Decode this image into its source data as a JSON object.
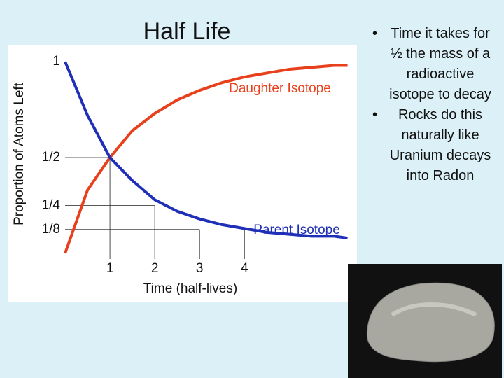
{
  "chart_data": {
    "type": "line",
    "title": "Half Life",
    "x_label": "Time (half-lives)",
    "y_label": "Proportion of Atoms Left",
    "x": [
      0,
      0.5,
      1,
      1.5,
      2,
      2.5,
      3,
      3.5,
      4,
      4.5,
      5,
      5.5,
      6,
      6.3
    ],
    "series": [
      {
        "name": "Daughter Isotope",
        "color": "#e8401c",
        "values": [
          0,
          0.33,
          0.5,
          0.64,
          0.73,
          0.8,
          0.85,
          0.89,
          0.92,
          0.94,
          0.96,
          0.97,
          0.98,
          0.98
        ]
      },
      {
        "name": "Parent Isotope",
        "color": "#1f2fb8",
        "values": [
          1,
          0.72,
          0.5,
          0.38,
          0.28,
          0.22,
          0.18,
          0.15,
          0.13,
          0.11,
          0.1,
          0.09,
          0.09,
          0.08
        ]
      }
    ],
    "xlim": [
      0,
      6.4
    ],
    "xticks": [
      1,
      2,
      3,
      4
    ],
    "ylim": [
      0,
      1
    ],
    "yticks": [
      1,
      {
        "value": 0.5,
        "label": "1/2"
      },
      {
        "value": 0.25,
        "label": "1/4"
      },
      {
        "value": 0.125,
        "label": "1/8"
      }
    ]
  },
  "slide": {
    "bullets": [
      "Time it takes for ½ the mass of a radioactive isotope to decay",
      "Rocks do this naturally like Uranium decays into Radon"
    ]
  }
}
